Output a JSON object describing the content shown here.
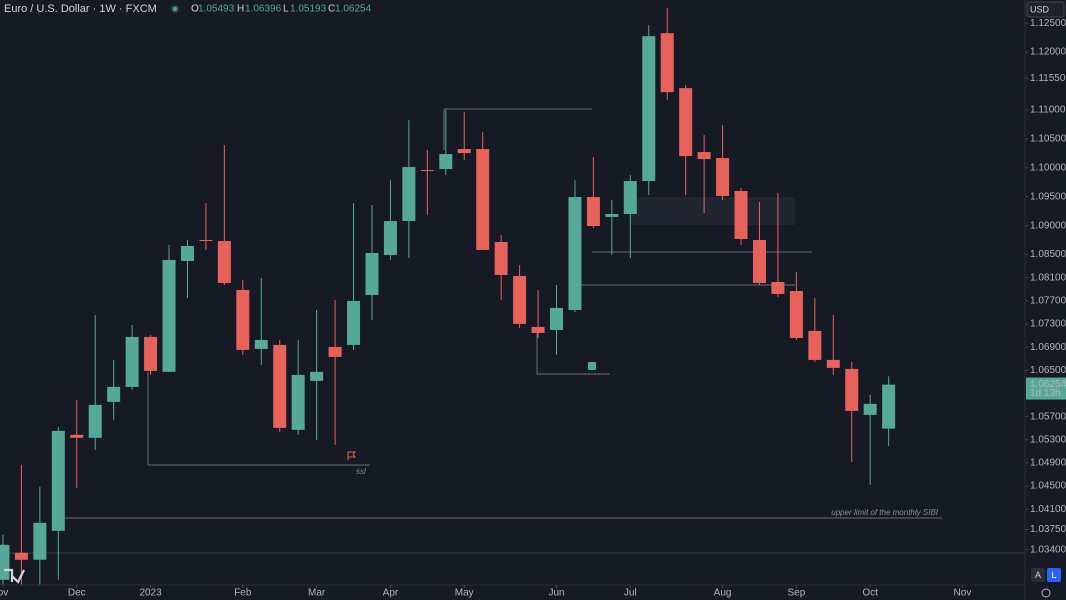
{
  "chart_data": {
    "type": "candlestick",
    "title": "Euro / U.S. Dollar · 1W · FXCM",
    "ohlc_labels": [
      "O",
      "H",
      "L",
      "C"
    ],
    "currency": "USD",
    "countdown": "1d 13h",
    "buttons": [
      "A",
      "L"
    ],
    "annotations": [
      "ssl",
      "upper limit of the monthly SIBI"
    ],
    "up_color": "#56a89b",
    "down_color": "#e8625c",
    "open": [
      1.0288,
      1.03347,
      1.03226,
      1.03727,
      1.05385,
      1.05333,
      1.05955,
      1.06214,
      1.07077,
      1.06473,
      1.0839,
      1.08752,
      1.08735,
      1.07889,
      1.0687,
      1.06939,
      1.05471,
      1.06317,
      1.06904,
      1.06939,
      1.07802,
      1.08493,
      1.0908,
      1.09961,
      1.09978,
      1.10324,
      1.10324,
      1.08718,
      1.08131,
      1.0725,
      1.07198,
      1.07543,
      1.09495,
      1.0915,
      1.09201,
      1.09771,
      1.12327,
      1.11377,
      1.10272,
      1.10168,
      1.09599,
      1.08752,
      1.08027,
      1.07871,
      1.07181,
      1.0668,
      1.06524,
      1.0573,
      1.05493
    ],
    "high": [
      1.03658,
      1.04867,
      1.04487,
      1.05523,
      1.05989,
      1.07457,
      1.0668,
      1.07284,
      1.07112,
      1.08666,
      1.08752,
      1.09391,
      1.10393,
      1.08061,
      1.08096,
      1.07025,
      1.07025,
      1.07543,
      1.07716,
      1.09391,
      1.09357,
      1.09788,
      1.10825,
      1.10307,
      1.10997,
      1.10963,
      1.10617,
      1.08839,
      1.08321,
      1.07889,
      1.07975,
      1.09788,
      1.10186,
      1.09443,
      1.09875,
      1.12465,
      1.12759,
      1.11429,
      1.10566,
      1.10738,
      1.0965,
      1.09409,
      1.09564,
      1.082,
      1.07751,
      1.07457,
      1.06645,
      1.06075,
      1.06396
    ],
    "low": [
      1.02794,
      1.02794,
      1.02794,
      1.0288,
      1.04469,
      1.05126,
      1.05644,
      1.06162,
      1.06421,
      1.06473,
      1.07751,
      1.0858,
      1.07975,
      1.06766,
      1.06594,
      1.05436,
      1.05385,
      1.05298,
      1.05212,
      1.06853,
      1.07371,
      1.08407,
      1.08441,
      1.09184,
      1.09875,
      1.10134,
      1.0858,
      1.07716,
      1.07232,
      1.0706,
      1.06766,
      1.07509,
      1.08959,
      1.08493,
      1.08441,
      1.09529,
      1.1117,
      1.09529,
      1.09219,
      1.09443,
      1.08666,
      1.07975,
      1.07768,
      1.07025,
      1.06645,
      1.06421,
      1.04918,
      1.04521,
      1.05193
    ],
    "close": [
      1.03485,
      1.03226,
      1.03865,
      1.05454,
      1.05333,
      1.05903,
      1.06214,
      1.07077,
      1.0649,
      1.08407,
      1.08649,
      1.08735,
      1.0801,
      1.06853,
      1.07025,
      1.05505,
      1.06421,
      1.06473,
      1.06732,
      1.07699,
      1.08528,
      1.0908,
      1.10013,
      1.09944,
      1.10237,
      1.10255,
      1.0858,
      1.08148,
      1.07302,
      1.07146,
      1.07578,
      1.09495,
      1.08994,
      1.09201,
      1.09771,
      1.12275,
      1.11308,
      1.10203,
      1.10151,
      1.09512,
      1.0877,
      1.0801,
      1.0782,
      1.0706,
      1.0668,
      1.06542,
      1.05799,
      1.0592,
      1.06254
    ],
    "ylim": [
      1.0279,
      1.129
    ],
    "yticks": [
      {
        "value": 1.125,
        "label": "1.12500"
      },
      {
        "value": 1.12,
        "label": "1.12000"
      },
      {
        "value": 1.1155,
        "label": "1.11550"
      },
      {
        "value": 1.11,
        "label": "1.11000"
      },
      {
        "value": 1.105,
        "label": "1.10500"
      },
      {
        "value": 1.1,
        "label": "1.10000"
      },
      {
        "value": 1.095,
        "label": "1.09500"
      },
      {
        "value": 1.09,
        "label": "1.09000"
      },
      {
        "value": 1.085,
        "label": "1.08500"
      },
      {
        "value": 1.081,
        "label": "1.08100"
      },
      {
        "value": 1.077,
        "label": "1.07700"
      },
      {
        "value": 1.073,
        "label": "1.07300"
      },
      {
        "value": 1.069,
        "label": "1.06900"
      },
      {
        "value": 1.065,
        "label": "1.06500"
      },
      {
        "value": 1.057,
        "label": "1.05700"
      },
      {
        "value": 1.053,
        "label": "1.05300"
      },
      {
        "value": 1.049,
        "label": "1.04900"
      },
      {
        "value": 1.045,
        "label": "1.04500"
      },
      {
        "value": 1.041,
        "label": "1.04100"
      },
      {
        "value": 1.0375,
        "label": "1.03750"
      },
      {
        "value": 1.034,
        "label": "1.03400"
      }
    ],
    "xlim": [
      -0.16,
      55.39
    ],
    "xticks": [
      {
        "value": 0,
        "label": "ov"
      },
      {
        "value": 4,
        "label": "Dec"
      },
      {
        "value": 8,
        "label": "2023"
      },
      {
        "value": 13,
        "label": "Feb"
      },
      {
        "value": 17,
        "label": "Mar"
      },
      {
        "value": 21,
        "label": "Apr"
      },
      {
        "value": 25,
        "label": "May"
      },
      {
        "value": 30,
        "label": "Jun"
      },
      {
        "value": 34,
        "label": "Jul"
      },
      {
        "value": 39,
        "label": "Aug"
      },
      {
        "value": 43,
        "label": "Sep"
      },
      {
        "value": 47,
        "label": "Oct"
      },
      {
        "value": 52,
        "label": "Nov"
      }
    ]
  }
}
